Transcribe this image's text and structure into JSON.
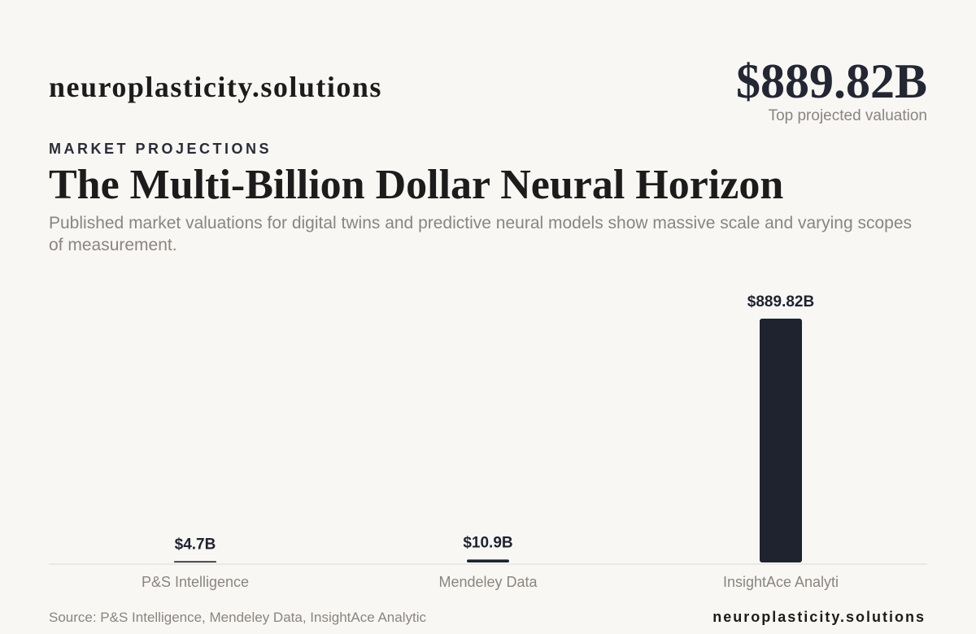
{
  "header": {
    "brand": "neuroplasticity.solutions",
    "stat": "$889.82B",
    "stat_caption": "Top projected valuation"
  },
  "kicker": "MARKET PROJECTIONS",
  "title": "The Multi-Billion Dollar Neural Horizon",
  "subtitle": "Published market valuations for digital twins and predictive neural models show massive scale and varying scopes of measurement.",
  "chart_data": {
    "type": "bar",
    "categories": [
      "P&S Intelligence",
      "Mendeley Data",
      "InsightAce Analyti"
    ],
    "values": [
      4.7,
      10.9,
      889.82
    ],
    "value_labels": [
      "$4.7B",
      "$10.9B",
      "$889.82B"
    ],
    "color": "#1f2330"
  },
  "footer": {
    "source": "Source: P&S Intelligence, Mendeley Data, InsightAce Analytic",
    "brand": "neuroplasticity.solutions"
  }
}
